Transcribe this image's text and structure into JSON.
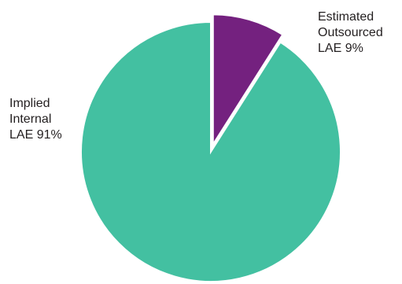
{
  "chart_data": {
    "type": "pie",
    "title": "",
    "slices": [
      {
        "label": "Estimated Outsourced LAE 9%",
        "label_lines": [
          "Estimated",
          "Outsourced",
          "LAE 9%"
        ],
        "value": 9,
        "color": "#74217f",
        "exploded": true
      },
      {
        "label": "Implied Internal LAE 91%",
        "label_lines": [
          "Implied",
          "Internal",
          "LAE 91%"
        ],
        "value": 91,
        "color": "#43c0a1",
        "exploded": false
      }
    ],
    "legend": "none"
  }
}
